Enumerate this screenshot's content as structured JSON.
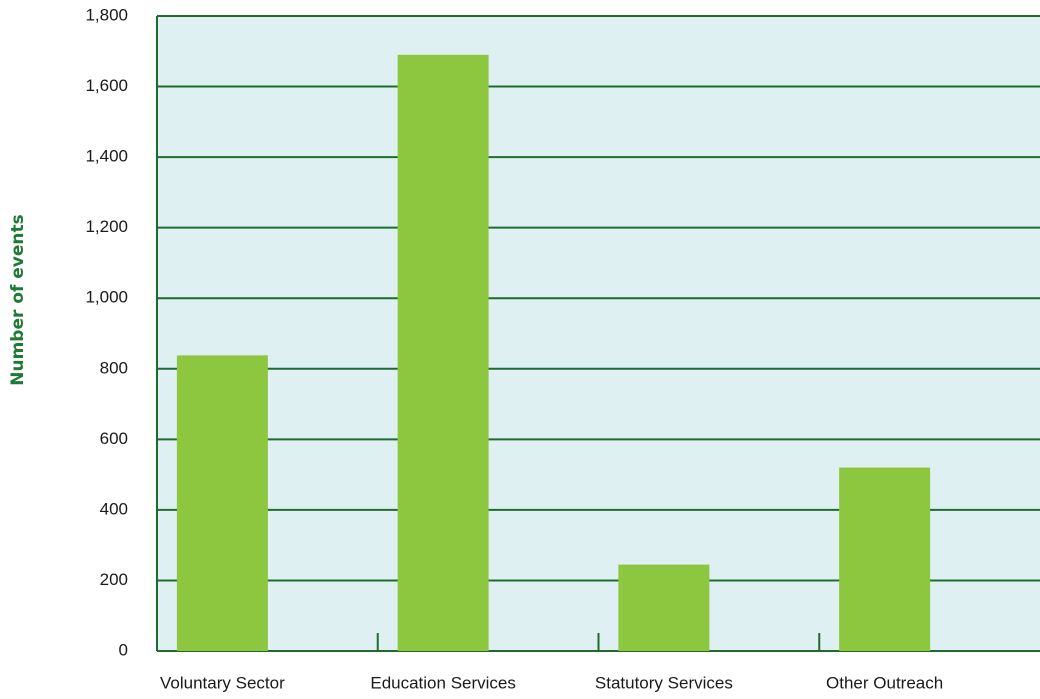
{
  "chart_data": {
    "type": "bar",
    "y_label": "Number of events",
    "categories": [
      "Voluntary Sector",
      "Education Services",
      "Statutory Services",
      "Other Outreach"
    ],
    "values": [
      838,
      1690,
      245,
      520
    ],
    "color": "#8dc63f",
    "background": "#dff0f3",
    "grid_color": "#1f6b2e",
    "ylim": [
      0,
      1800
    ],
    "yticks": [
      0,
      200,
      400,
      600,
      800,
      {
        "value": 1000,
        "label": "1,000"
      },
      {
        "value": 1200,
        "label": "1,200"
      },
      {
        "value": 1400,
        "label": "1,400"
      },
      {
        "value": 1600,
        "label": "1,600"
      },
      {
        "value": 1800,
        "label": "1,800"
      }
    ],
    "grid": true
  }
}
